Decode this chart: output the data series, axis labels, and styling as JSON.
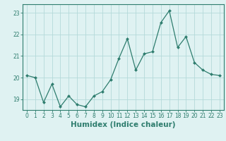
{
  "x": [
    0,
    1,
    2,
    3,
    4,
    5,
    6,
    7,
    8,
    9,
    10,
    11,
    12,
    13,
    14,
    15,
    16,
    17,
    18,
    19,
    20,
    21,
    22,
    23
  ],
  "y": [
    20.1,
    20.0,
    18.85,
    19.7,
    18.65,
    19.15,
    18.75,
    18.65,
    19.15,
    19.35,
    19.9,
    20.9,
    21.8,
    20.35,
    21.1,
    21.2,
    22.55,
    23.1,
    21.4,
    21.9,
    20.7,
    20.35,
    20.15,
    20.1
  ],
  "line_color": "#2e7d6e",
  "marker": "D",
  "marker_size": 2.0,
  "bg_color": "#dff2f2",
  "grid_color": "#b5d9d9",
  "xlabel": "Humidex (Indice chaleur)",
  "ylim": [
    18.5,
    23.4
  ],
  "xlim": [
    -0.5,
    23.5
  ],
  "yticks": [
    19,
    20,
    21,
    22,
    23
  ],
  "xticks": [
    0,
    1,
    2,
    3,
    4,
    5,
    6,
    7,
    8,
    9,
    10,
    11,
    12,
    13,
    14,
    15,
    16,
    17,
    18,
    19,
    20,
    21,
    22,
    23
  ],
  "tick_fontsize": 5.5,
  "xlabel_fontsize": 7.5,
  "spine_color": "#2e7d6e",
  "text_color": "#2e7d6e"
}
